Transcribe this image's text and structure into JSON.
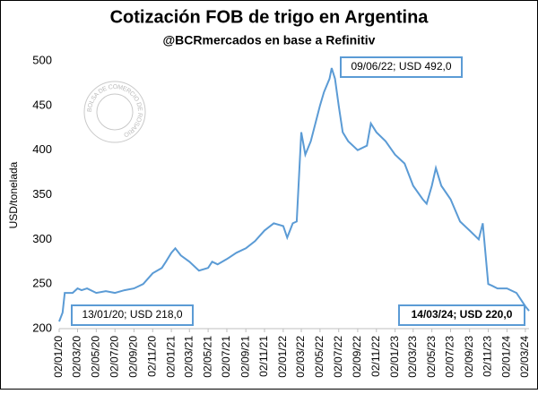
{
  "chart_data": {
    "type": "line",
    "title": "Cotización FOB de trigo en Argentina",
    "subtitle": "@BCRmercados en base a Refinitiv",
    "y_label": "USD/tonelada",
    "watermark": "BOLSA DE COMERCIO DE ROSARIO",
    "annotations": [
      "09/06/22; USD 492,0",
      "13/01/20; USD 218,0",
      "14/03/24; USD 220,0"
    ],
    "color": "#5b9bd5",
    "x": [
      "02/01/20",
      "13/01/20",
      "20/01/20",
      "15/02/20",
      "02/03/20",
      "15/03/20",
      "02/04/20",
      "02/05/20",
      "02/06/20",
      "02/07/20",
      "02/08/20",
      "02/09/20",
      "02/10/20",
      "02/11/20",
      "02/12/20",
      "15/12/20",
      "02/01/21",
      "15/01/21",
      "02/02/21",
      "02/03/21",
      "02/04/21",
      "02/05/21",
      "15/05/21",
      "02/06/21",
      "02/07/21",
      "02/08/21",
      "02/09/21",
      "02/10/21",
      "02/11/21",
      "02/12/21",
      "02/01/22",
      "15/01/22",
      "02/02/22",
      "15/02/22",
      "02/03/22",
      "15/03/22",
      "02/04/22",
      "02/05/22",
      "15/05/22",
      "02/06/22",
      "09/06/22",
      "20/06/22",
      "02/07/22",
      "15/07/22",
      "02/08/22",
      "02/09/22",
      "02/10/22",
      "15/10/22",
      "02/11/22",
      "02/12/22",
      "02/01/23",
      "02/02/23",
      "02/03/23",
      "02/04/23",
      "15/04/23",
      "02/05/23",
      "15/05/23",
      "02/06/23",
      "02/07/23",
      "02/08/23",
      "02/09/23",
      "02/10/23",
      "15/10/23",
      "02/11/23",
      "15/11/23",
      "02/12/23",
      "02/01/24",
      "02/02/24",
      "02/03/24",
      "14/03/24"
    ],
    "values": [
      208,
      218,
      240,
      240,
      245,
      243,
      245,
      240,
      242,
      240,
      243,
      245,
      250,
      262,
      268,
      275,
      285,
      290,
      282,
      275,
      265,
      268,
      275,
      272,
      278,
      285,
      290,
      298,
      310,
      318,
      315,
      302,
      318,
      320,
      420,
      395,
      410,
      450,
      465,
      480,
      492,
      480,
      450,
      420,
      410,
      400,
      405,
      430,
      420,
      410,
      395,
      385,
      360,
      345,
      340,
      360,
      380,
      360,
      345,
      320,
      310,
      300,
      318,
      250,
      248,
      245,
      245,
      240,
      225,
      220
    ],
    "xlim": [
      "02/01/20",
      "14/03/24"
    ],
    "xticks": [
      "02/01/20",
      "02/03/20",
      "02/05/20",
      "02/07/20",
      "02/09/20",
      "02/11/20",
      "02/01/21",
      "02/03/21",
      "02/05/21",
      "02/07/21",
      "02/09/21",
      "02/11/21",
      "02/01/22",
      "02/03/22",
      "02/05/22",
      "02/07/22",
      "02/09/22",
      "02/11/22",
      "02/01/23",
      "02/03/23",
      "02/05/23",
      "02/07/23",
      "02/09/23",
      "02/11/23",
      "02/01/24",
      "02/03/24"
    ],
    "ylim": [
      200,
      500
    ],
    "yticks": [
      200,
      250,
      300,
      350,
      400,
      450,
      500
    ],
    "grid": false
  }
}
